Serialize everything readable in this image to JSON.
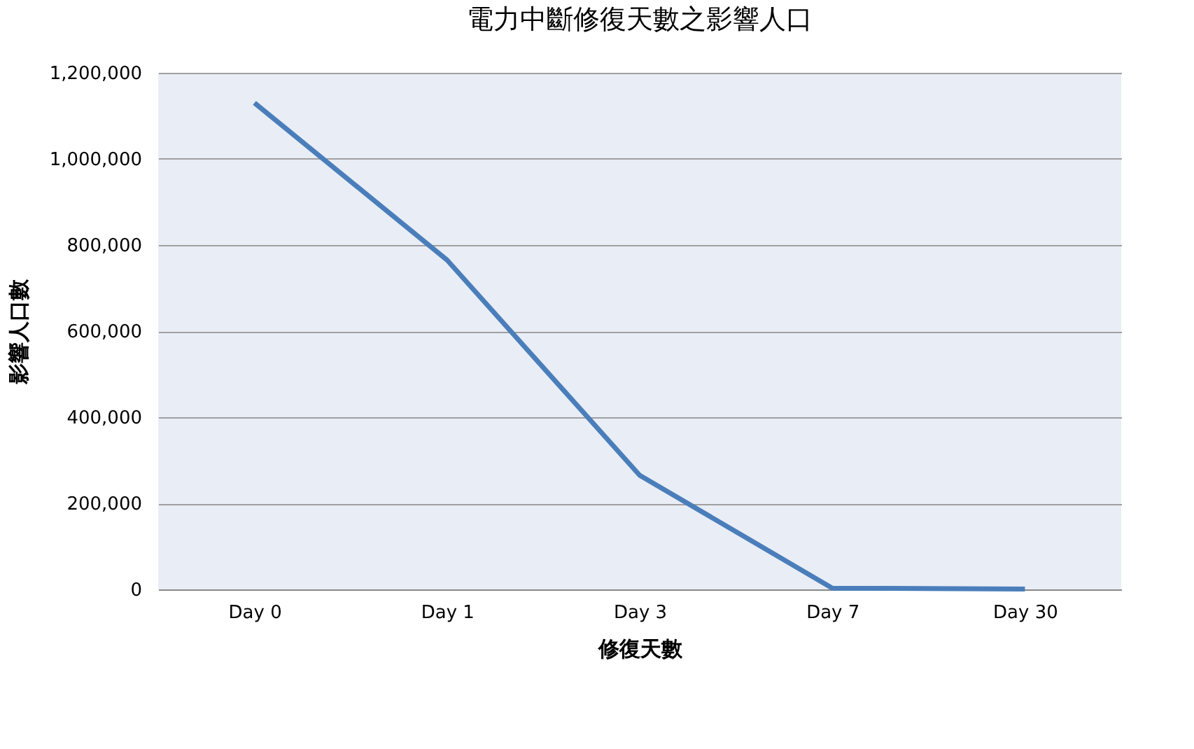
{
  "chart_data": {
    "type": "line",
    "title": "電力中斷修復天數之影響人口",
    "xlabel": "修復天數",
    "ylabel": "影響人口數",
    "categories": [
      "Day 0",
      "Day 1",
      "Day 3",
      "Day 7",
      "Day 30"
    ],
    "series": [
      {
        "color": "#4a7ebb",
        "values": [
          1130000,
          765000,
          265000,
          3000,
          1000
        ]
      }
    ],
    "ylim": [
      0,
      1200000
    ],
    "yticks": [
      0,
      {
        "value": 200000,
        "label": "200,000"
      },
      {
        "value": 400000,
        "label": "400,000"
      },
      {
        "value": 600000,
        "label": "600,000"
      },
      {
        "value": 800000,
        "label": "800,000"
      },
      {
        "value": 1000000,
        "label": "1,000,000"
      },
      {
        "value": 1200000,
        "label": "1,200,000"
      }
    ],
    "grid": "y",
    "marker": "none",
    "line_style": "solid"
  }
}
